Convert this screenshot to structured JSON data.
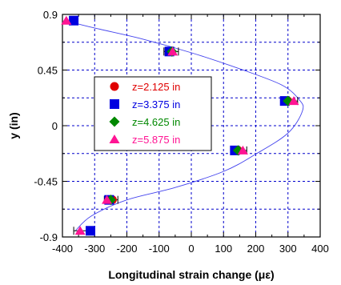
{
  "chart_data": {
    "type": "scatter",
    "xlabel": "Longitudinal strain change (με)",
    "ylabel": "y (in)",
    "xlim": [
      -400,
      400
    ],
    "ylim": [
      -0.9,
      0.9
    ],
    "xticks": [
      "-400",
      "-300",
      "-200",
      "-100",
      "0",
      "100",
      "200",
      "300",
      "400"
    ],
    "yticks": [
      "-0.9",
      "-0.45",
      "0",
      "0.45",
      "0.9"
    ],
    "xtick_values": [
      -400,
      -300,
      -200,
      -100,
      0,
      100,
      200,
      300,
      400
    ],
    "ytick_values": [
      -0.9,
      -0.45,
      0,
      0.45,
      0.9
    ],
    "grid": true,
    "legend_position": "center-left",
    "fit_curve": {
      "color": "#4444ee",
      "points": [
        [
          -392,
          0.85
        ],
        [
          -300,
          0.79
        ],
        [
          -150,
          0.7
        ],
        [
          0,
          0.59
        ],
        [
          150,
          0.46
        ],
        [
          280,
          0.33
        ],
        [
          335,
          0.21
        ],
        [
          345,
          0.12
        ],
        [
          300,
          -0.06
        ],
        [
          200,
          -0.23
        ],
        [
          100,
          -0.37
        ],
        [
          -50,
          -0.5
        ],
        [
          -200,
          -0.6
        ],
        [
          -310,
          -0.73
        ],
        [
          -360,
          -0.85
        ]
      ]
    },
    "series": [
      {
        "name": "z=2.125 in",
        "color": "#e00000",
        "marker": "circle",
        "x": [
          -65,
          300,
          145,
          -245
        ],
        "y": [
          0.6,
          0.2,
          -0.2,
          -0.6
        ]
      },
      {
        "name": "z=3.375 in",
        "color": "#0000e0",
        "marker": "square",
        "x": [
          -365,
          -68,
          290,
          135,
          -255,
          -313
        ],
        "y": [
          0.85,
          0.6,
          0.2,
          -0.2,
          -0.6,
          -0.85
        ]
      },
      {
        "name": "z=4.625 in",
        "color": "#008800",
        "marker": "diamond",
        "x": [
          -60,
          300,
          145,
          -250
        ],
        "y": [
          0.6,
          0.2,
          -0.2,
          -0.6
        ]
      },
      {
        "name": "z=5.875 in",
        "color": "#ff1493",
        "marker": "triangle",
        "x": [
          -388,
          -58,
          318,
          160,
          -262,
          -345
        ],
        "y": [
          0.85,
          0.6,
          0.2,
          -0.2,
          -0.6,
          -0.85
        ]
      }
    ],
    "error_bars": [
      {
        "y": 0.6,
        "xmin": -85,
        "xmax": -40
      },
      {
        "y": 0.2,
        "xmin": 280,
        "xmax": 330
      },
      {
        "y": -0.2,
        "xmin": 125,
        "xmax": 172
      },
      {
        "y": -0.6,
        "xmin": -270,
        "xmax": -228
      },
      {
        "y": -0.85,
        "xmin": -365,
        "xmax": -300
      }
    ]
  }
}
